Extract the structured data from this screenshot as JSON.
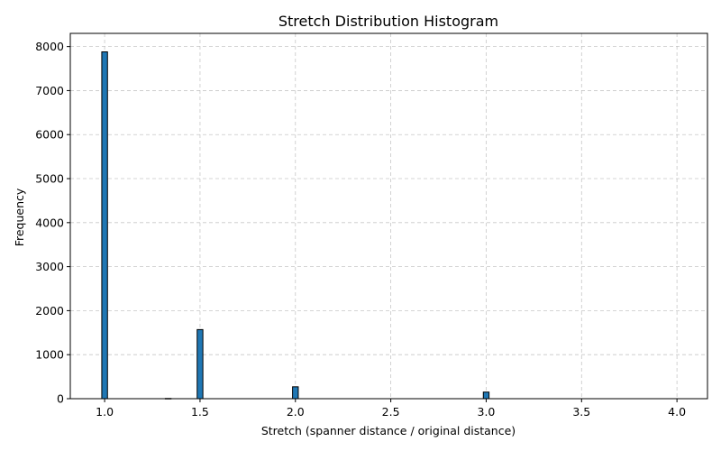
{
  "chart_data": {
    "type": "bar",
    "title": "Stretch Distribution Histogram",
    "xlabel": "Stretch (spanner distance / original distance)",
    "ylabel": "Frequency",
    "xlim": [
      0.82,
      4.16
    ],
    "ylim": [
      0,
      8300
    ],
    "xticks": [
      "1.0",
      "1.5",
      "2.0",
      "2.5",
      "3.0",
      "3.5",
      "4.0"
    ],
    "yticks": [
      "0",
      "1000",
      "2000",
      "3000",
      "4000",
      "5000",
      "6000",
      "7000",
      "8000"
    ],
    "bin_width": 0.03,
    "bars": [
      {
        "x": 1.0,
        "value": 7880
      },
      {
        "x": 1.333,
        "value": 5
      },
      {
        "x": 1.5,
        "value": 1570
      },
      {
        "x": 2.0,
        "value": 270
      },
      {
        "x": 3.0,
        "value": 150
      }
    ],
    "bar_color": "#1f77b4",
    "grid": true
  }
}
